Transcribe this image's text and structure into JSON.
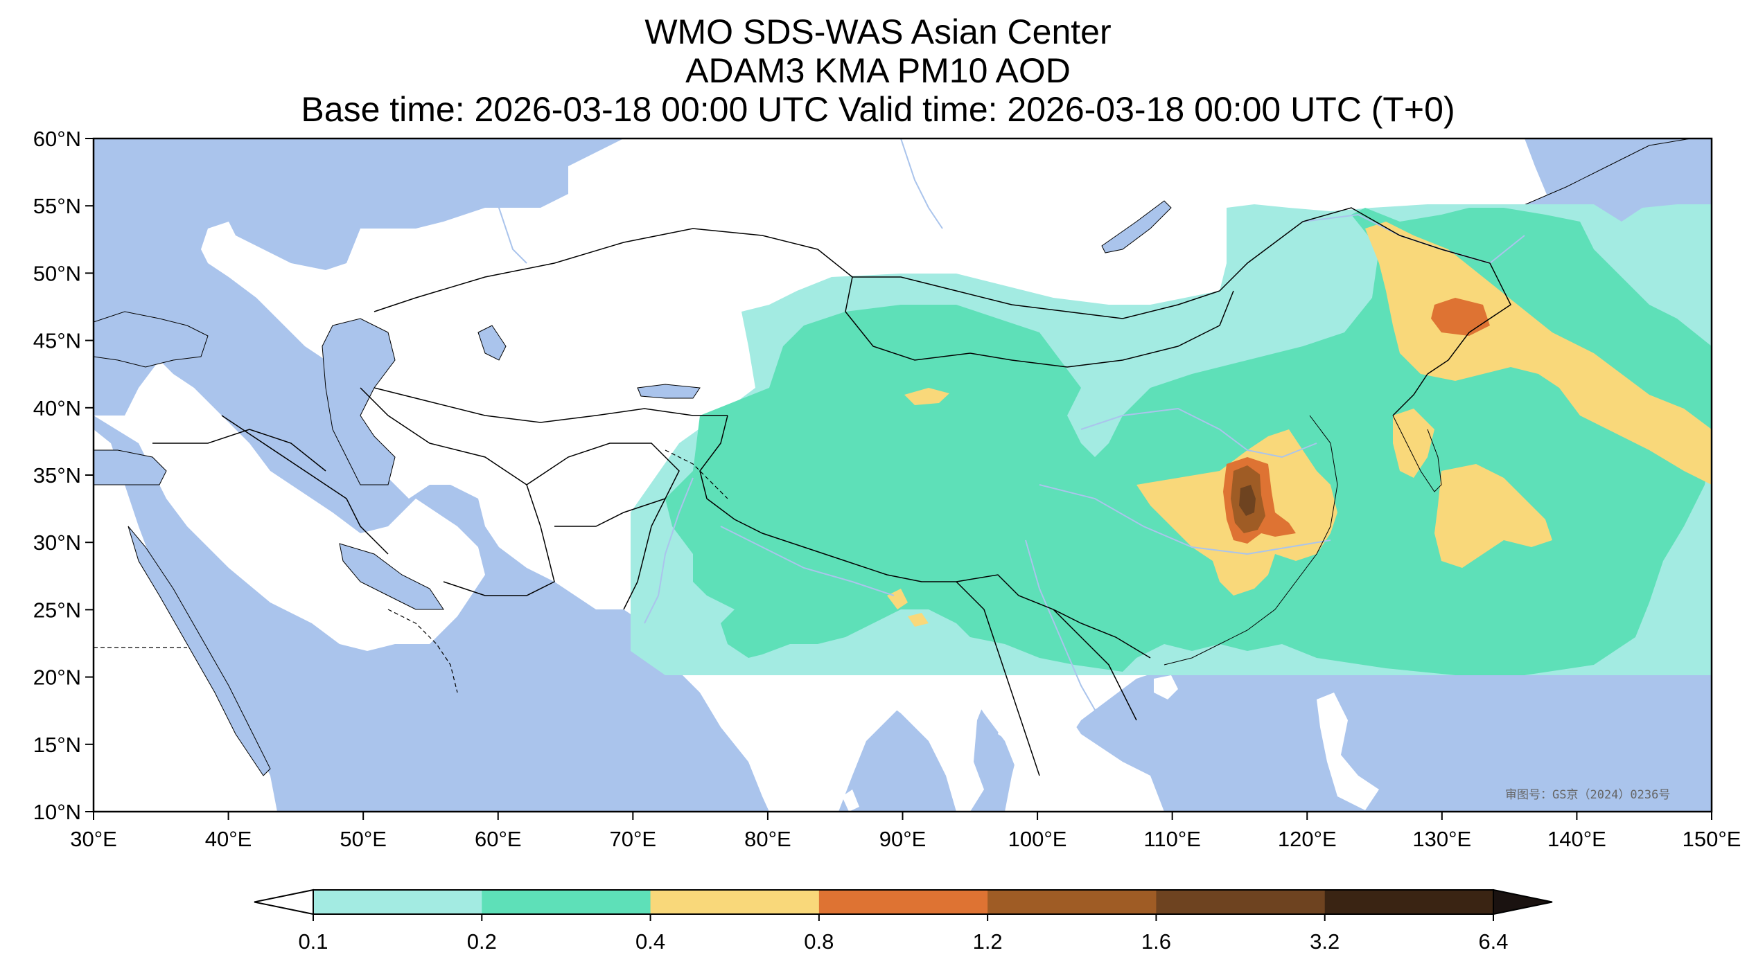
{
  "title": {
    "line1": "WMO SDS-WAS Asian Center",
    "line2": "ADAM3 KMA PM10 AOD",
    "line3": "Base time: 2026-03-18 00:00 UTC Valid time: 2026-03-18 00:00 UTC (T+0)"
  },
  "map": {
    "lon_range": [
      30,
      150
    ],
    "lat_range": [
      10,
      60
    ],
    "domain_lon_range": [
      70,
      150
    ],
    "domain_lat_range": [
      20,
      55
    ],
    "x_ticks": [
      {
        "value": 30,
        "label": "30°E"
      },
      {
        "value": 40,
        "label": "40°E"
      },
      {
        "value": 50,
        "label": "50°E"
      },
      {
        "value": 60,
        "label": "60°E"
      },
      {
        "value": 70,
        "label": "70°E"
      },
      {
        "value": 80,
        "label": "80°E"
      },
      {
        "value": 90,
        "label": "90°E"
      },
      {
        "value": 100,
        "label": "100°E"
      },
      {
        "value": 110,
        "label": "110°E"
      },
      {
        "value": 120,
        "label": "120°E"
      },
      {
        "value": 130,
        "label": "130°E"
      },
      {
        "value": 140,
        "label": "140°E"
      },
      {
        "value": 150,
        "label": "150°E"
      }
    ],
    "y_ticks": [
      {
        "value": 60,
        "label": "60°N"
      },
      {
        "value": 55,
        "label": "55°N"
      },
      {
        "value": 50,
        "label": "50°N"
      },
      {
        "value": 45,
        "label": "45°N"
      },
      {
        "value": 40,
        "label": "40°N"
      },
      {
        "value": 35,
        "label": "35°N"
      },
      {
        "value": 30,
        "label": "30°N"
      },
      {
        "value": 25,
        "label": "25°N"
      },
      {
        "value": 20,
        "label": "20°N"
      },
      {
        "value": 15,
        "label": "15°N"
      },
      {
        "value": 10,
        "label": "10°N"
      }
    ],
    "stamp": "审图号：GS京（2024）0236号",
    "colors": {
      "ocean": "#aac4ec",
      "land": "#ffffff",
      "river": "#aac4ec",
      "border": "#000000"
    }
  },
  "colorbar": {
    "boundaries": [
      "0.1",
      "0.2",
      "0.4",
      "0.8",
      "1.2",
      "1.6",
      "3.2",
      "6.4"
    ],
    "colors": [
      "#a3ebe2",
      "#5ee0b8",
      "#f9d87a",
      "#de7333",
      "#9f5c25",
      "#6e4320",
      "#3a2413"
    ],
    "extend_low_color": "#ffffff",
    "extend_high_color": "#1a1210"
  }
}
